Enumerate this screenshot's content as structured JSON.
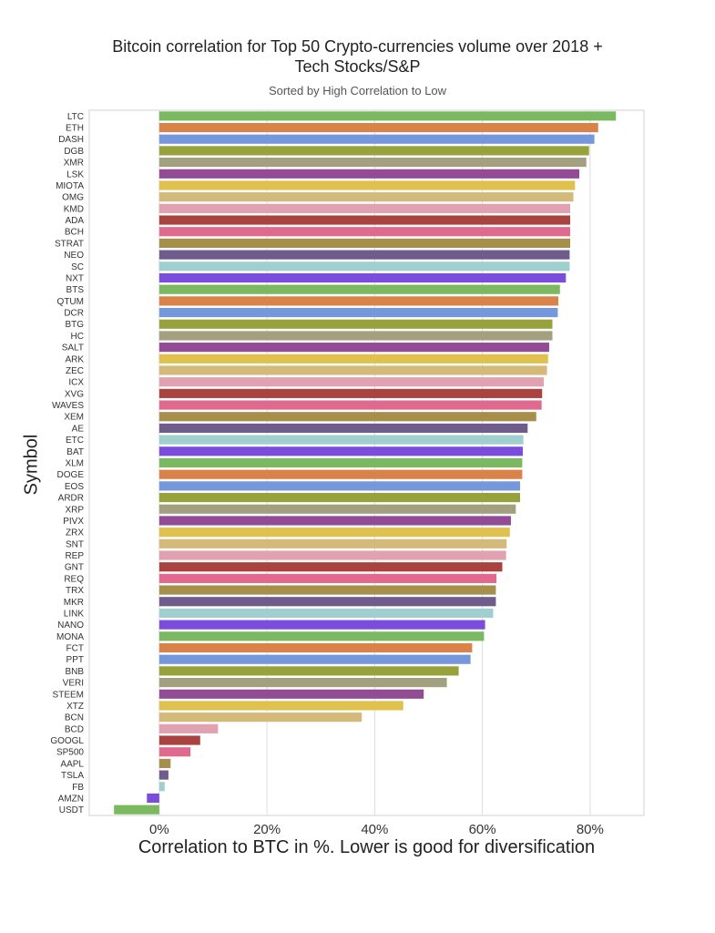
{
  "chart_data": {
    "type": "bar",
    "orientation": "horizontal",
    "title": "Bitcoin correlation for Top 50 Crypto-currencies volume over 2018 + Tech Stocks/S&P",
    "subtitle": "Sorted by High Correlation to Low",
    "xlabel": "Correlation to BTC in %. Lower is good for diversification",
    "ylabel": "Symbol",
    "xlim": [
      -13,
      90
    ],
    "xticks": [
      0,
      20,
      40,
      60,
      80
    ],
    "xtick_labels": [
      "0%",
      "20%",
      "40%",
      "60%",
      "80%"
    ],
    "grid": "vertical",
    "categories": [
      "LTC",
      "ETH",
      "DASH",
      "DGB",
      "XMR",
      "LSK",
      "MIOTA",
      "OMG",
      "KMD",
      "ADA",
      "BCH",
      "STRAT",
      "NEO",
      "SC",
      "NXT",
      "BTS",
      "QTUM",
      "DCR",
      "BTG",
      "HC",
      "SALT",
      "ARK",
      "ZEC",
      "ICX",
      "XVG",
      "WAVES",
      "XEM",
      "AE",
      "ETC",
      "BAT",
      "XLM",
      "DOGE",
      "EOS",
      "ARDR",
      "XRP",
      "PIVX",
      "ZRX",
      "SNT",
      "REP",
      "GNT",
      "REQ",
      "TRX",
      "MKR",
      "LINK",
      "NANO",
      "MONA",
      "FCT",
      "PPT",
      "BNB",
      "VERI",
      "STEEM",
      "XTZ",
      "BCN",
      "BCD",
      "GOOGL",
      "SP500",
      "AAPL",
      "TSLA",
      "FB",
      "AMZN",
      "USDT"
    ],
    "values": [
      84.8,
      81.5,
      80.8,
      79.8,
      79.3,
      78.0,
      77.2,
      76.9,
      76.3,
      76.3,
      76.3,
      76.3,
      76.2,
      76.2,
      75.5,
      74.4,
      74.1,
      74.0,
      73.0,
      73.0,
      72.4,
      72.2,
      72.0,
      71.4,
      71.1,
      71.0,
      70.0,
      68.4,
      67.6,
      67.5,
      67.4,
      67.4,
      67.0,
      67.0,
      66.2,
      65.3,
      65.1,
      64.5,
      64.4,
      63.7,
      62.6,
      62.5,
      62.5,
      62.0,
      60.5,
      60.3,
      58.1,
      57.8,
      55.6,
      53.4,
      49.1,
      45.3,
      37.6,
      10.9,
      7.6,
      5.8,
      2.1,
      1.7,
      1.0,
      -2.3,
      -8.4
    ],
    "palette": [
      "#7bb960",
      "#d9834a",
      "#7597dc",
      "#98a23a",
      "#a3a07f",
      "#924b95",
      "#e0c14e",
      "#d3b97a",
      "#e0a2b0",
      "#aa4340",
      "#e06a8e",
      "#a68f4a",
      "#6f5c8d",
      "#9fcfcf",
      "#7a4ddd"
    ]
  }
}
